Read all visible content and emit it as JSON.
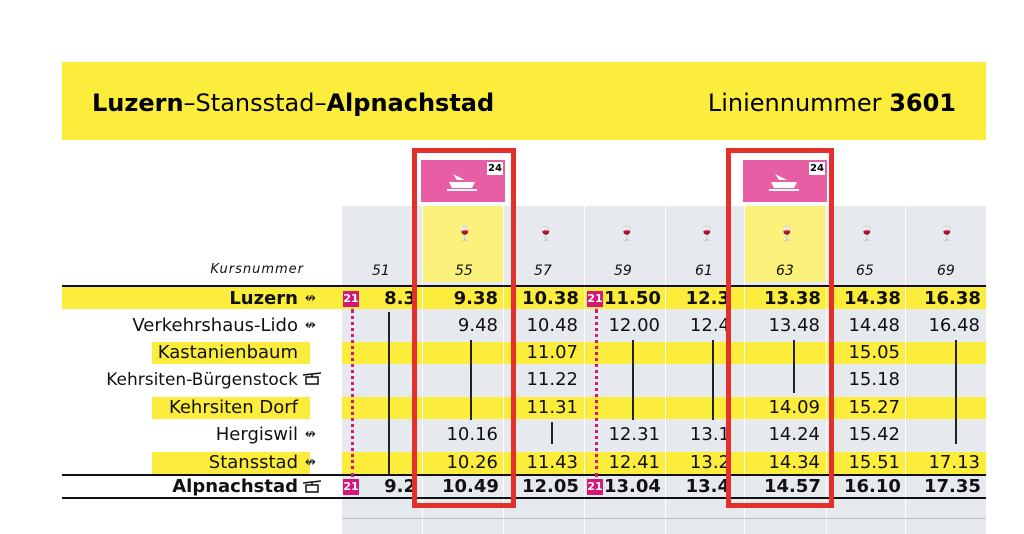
{
  "header": {
    "route_start": "Luzern",
    "route_dash1": "–",
    "route_mid": "Stansstad",
    "route_dash2": "–",
    "route_end": "Alpnachstad",
    "line_label": "Liniennummer",
    "line_number": "3601"
  },
  "table": {
    "kurs_label": "Kursnummer",
    "courses": [
      "51",
      "55",
      "57",
      "59",
      "61",
      "63",
      "65",
      "69"
    ],
    "boat_badge": "24",
    "glass_icon": "wine-glass-icon",
    "transfer_badge": "21",
    "stops": [
      {
        "name": "Luzern",
        "symbol": "↮",
        "bold": true
      },
      {
        "name": "Verkehrshaus-Lido",
        "symbol": "↮",
        "bold": false
      },
      {
        "name": "Kastanienbaum",
        "symbol": "",
        "bold": false
      },
      {
        "name": "Kehrsiten-Bürgenstock",
        "symbol": "cable-car-icon",
        "bold": false
      },
      {
        "name": "Kehrsiten Dorf",
        "symbol": "",
        "bold": false
      },
      {
        "name": "Hergiswil",
        "symbol": "↮",
        "bold": false
      },
      {
        "name": "Stansstad",
        "symbol": "↮",
        "bold": false
      },
      {
        "name": "Alpnachstad",
        "symbol": "cable-car-icon",
        "bold": true
      }
    ],
    "times": {
      "luzern": [
        "8.3",
        "9.38",
        "10.38",
        "11.50",
        "12.3",
        "13.38",
        "14.38",
        "16.38"
      ],
      "verkehrshaus": [
        "",
        "9.48",
        "10.48",
        "12.00",
        "12.4",
        "13.48",
        "14.48",
        "16.48"
      ],
      "kastanienbaum": [
        "",
        "",
        "11.07",
        "",
        "",
        "",
        "15.05",
        ""
      ],
      "buergenstock": [
        "",
        "",
        "11.22",
        "",
        "",
        "",
        "15.18",
        ""
      ],
      "kehrsiten_dorf": [
        "",
        "",
        "11.31",
        "",
        "",
        "14.09",
        "15.27",
        ""
      ],
      "hergiswil": [
        "",
        "10.16",
        "",
        "12.31",
        "13.1",
        "14.24",
        "15.42",
        ""
      ],
      "stansstad": [
        "",
        "10.26",
        "11.43",
        "12.41",
        "13.2",
        "14.34",
        "15.51",
        "17.13"
      ],
      "alpnachstad": [
        "9.2",
        "10.49",
        "12.05",
        "13.04",
        "13.4",
        "14.57",
        "16.10",
        "17.35"
      ]
    },
    "colors": {
      "yellow": "#fcec3c",
      "pale_yellow": "#fcf17a",
      "grey": "#e6eaee",
      "magenta": "#d4187a",
      "highlight_red": "#e3302a"
    }
  }
}
